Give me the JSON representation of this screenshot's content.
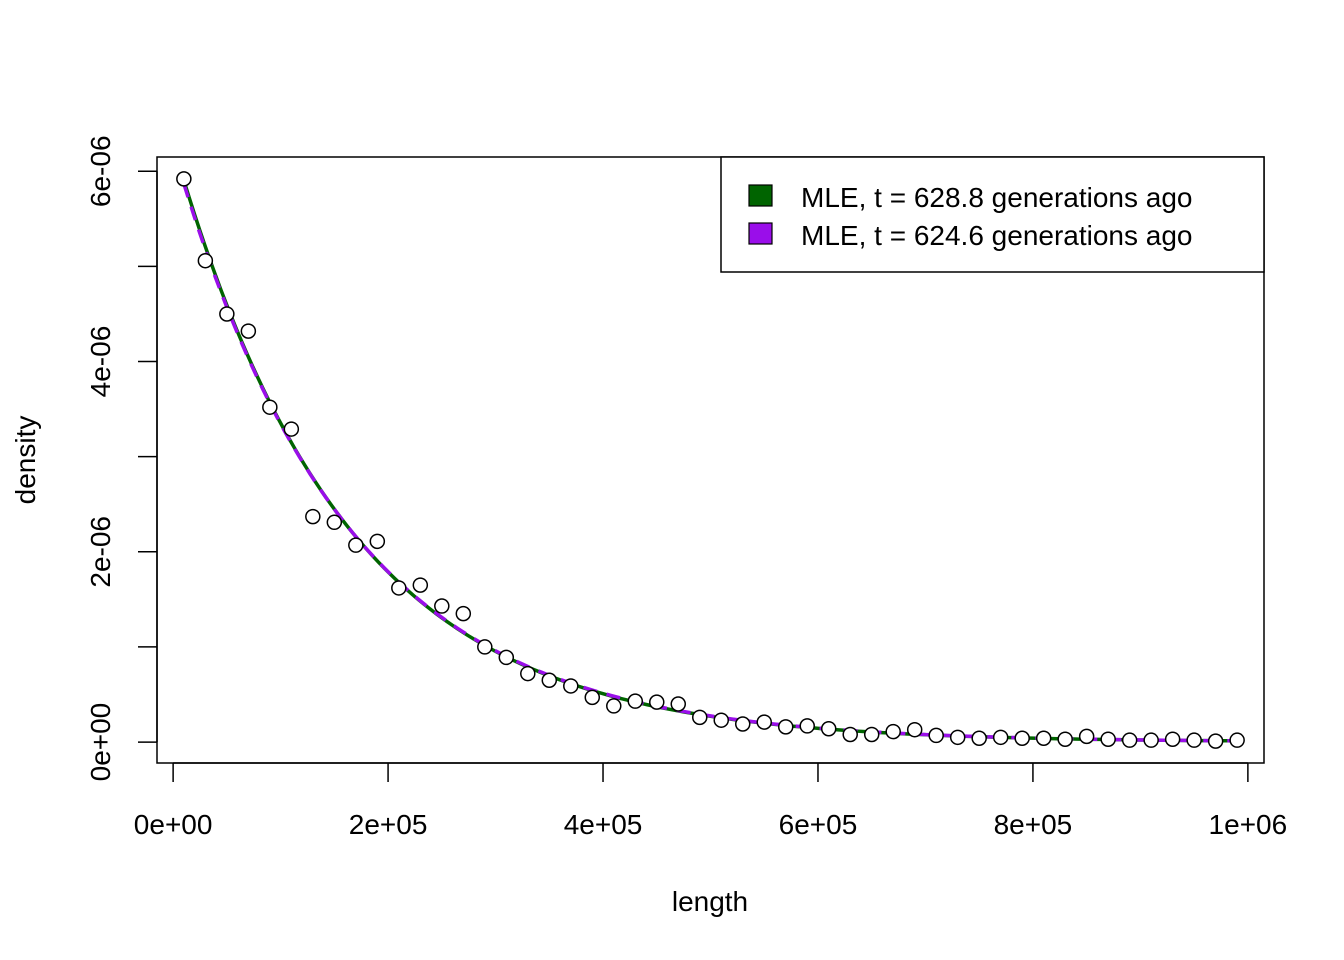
{
  "chart_data": {
    "type": "scatter",
    "title": "",
    "xlabel": "length",
    "ylabel": "density",
    "xlim": [
      -15000,
      1015000
    ],
    "ylim": [
      -2.2e-07,
      6.15e-06
    ],
    "x_ticks": [
      0,
      200000,
      400000,
      600000,
      800000,
      1000000
    ],
    "x_tick_labels": [
      "0e+00",
      "2e+05",
      "4e+05",
      "6e+05",
      "8e+05",
      "1e+06"
    ],
    "y_ticks": [
      0,
      1e-06,
      2e-06,
      3e-06,
      4e-06,
      5e-06,
      6e-06
    ],
    "y_tick_labels": [
      "0e+00",
      "",
      "2e-06",
      "",
      "4e-06",
      "",
      "6e-06"
    ],
    "grid": false,
    "legend_position": "top-right",
    "points": {
      "x": [
        10000,
        30000,
        50000,
        70000,
        90000,
        110000,
        130000,
        150000,
        170000,
        190000,
        210000,
        230000,
        250000,
        270000,
        290000,
        310000,
        330000,
        350000,
        370000,
        390000,
        410000,
        430000,
        450000,
        470000,
        490000,
        510000,
        530000,
        550000,
        570000,
        590000,
        610000,
        630000,
        650000,
        670000,
        690000,
        710000,
        730000,
        750000,
        770000,
        790000,
        810000,
        830000,
        850000,
        870000,
        890000,
        910000,
        930000,
        950000,
        970000,
        990000
      ],
      "y": [
        5.92e-06,
        5.06e-06,
        4.5e-06,
        4.32e-06,
        3.52e-06,
        3.29e-06,
        2.37e-06,
        2.31e-06,
        2.07e-06,
        2.11e-06,
        1.62e-06,
        1.65e-06,
        1.43e-06,
        1.35e-06,
        1e-06,
        8.9e-07,
        7.2e-07,
        6.5e-07,
        5.9e-07,
        4.7e-07,
        3.8e-07,
        4.3e-07,
        4.2e-07,
        4e-07,
        2.6e-07,
        2.3e-07,
        1.9e-07,
        2.1e-07,
        1.6e-07,
        1.7e-07,
        1.4e-07,
        8e-08,
        8e-08,
        1.1e-07,
        1.3e-07,
        7e-08,
        5e-08,
        4e-08,
        5e-08,
        4e-08,
        4e-08,
        3e-08,
        6e-08,
        3e-08,
        2e-08,
        2e-08,
        3e-08,
        2e-08,
        1e-08,
        2e-08
      ]
    },
    "series": [
      {
        "name": "MLE, t = 628.8 generations ago",
        "color": "#006400",
        "line_style": "solid",
        "curve": "exponential",
        "rate": 6.288e-06,
        "x_start": 10000,
        "x_end": 990000
      },
      {
        "name": "MLE, t = 624.6 generations ago",
        "color": "#9A0EEA",
        "line_style": "dashed",
        "curve": "exponential",
        "rate": 6.246e-06,
        "x_start": 10000,
        "x_end": 990000
      }
    ]
  }
}
